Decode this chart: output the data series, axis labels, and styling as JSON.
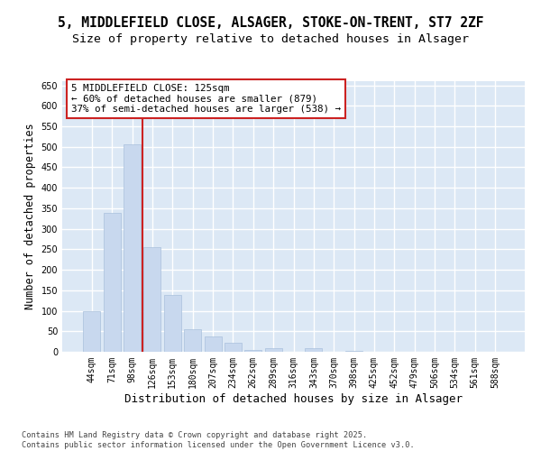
{
  "title1": "5, MIDDLEFIELD CLOSE, ALSAGER, STOKE-ON-TRENT, ST7 2ZF",
  "title2": "Size of property relative to detached houses in Alsager",
  "xlabel": "Distribution of detached houses by size in Alsager",
  "ylabel": "Number of detached properties",
  "categories": [
    "44sqm",
    "71sqm",
    "98sqm",
    "126sqm",
    "153sqm",
    "180sqm",
    "207sqm",
    "234sqm",
    "262sqm",
    "289sqm",
    "316sqm",
    "343sqm",
    "370sqm",
    "398sqm",
    "425sqm",
    "452sqm",
    "479sqm",
    "506sqm",
    "534sqm",
    "561sqm",
    "588sqm"
  ],
  "values": [
    99,
    338,
    505,
    255,
    138,
    54,
    38,
    22,
    5,
    8,
    0,
    8,
    0,
    3,
    0,
    0,
    0,
    0,
    0,
    0,
    0
  ],
  "bar_color": "#c8d8ee",
  "bar_edge_color": "#aac0dc",
  "vline_color": "#cc2222",
  "annotation_text": "5 MIDDLEFIELD CLOSE: 125sqm\n← 60% of detached houses are smaller (879)\n37% of semi-detached houses are larger (538) →",
  "annotation_box_facecolor": "#ffffff",
  "annotation_box_edgecolor": "#cc2222",
  "ylim": [
    0,
    660
  ],
  "yticks": [
    0,
    50,
    100,
    150,
    200,
    250,
    300,
    350,
    400,
    450,
    500,
    550,
    600,
    650
  ],
  "fig_bg_color": "#ffffff",
  "plot_bg_color": "#dce8f5",
  "grid_color": "#ffffff",
  "footer": "Contains HM Land Registry data © Crown copyright and database right 2025.\nContains public sector information licensed under the Open Government Licence v3.0.",
  "title1_fontsize": 10.5,
  "title2_fontsize": 9.5,
  "tick_fontsize": 7,
  "xlabel_fontsize": 9,
  "ylabel_fontsize": 8.5,
  "ann_fontsize": 7.8,
  "footer_fontsize": 6.2
}
